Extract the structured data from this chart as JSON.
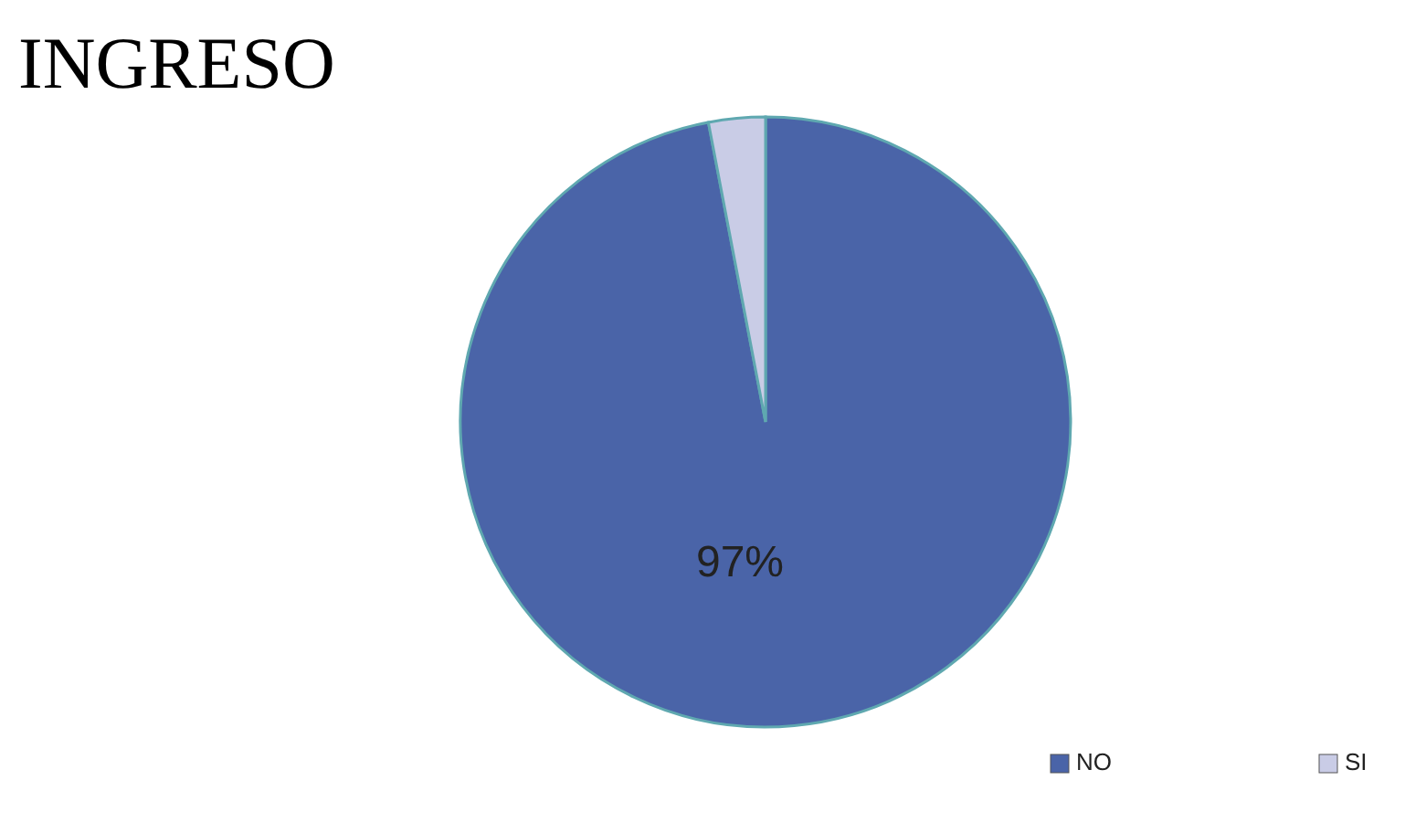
{
  "chart_data": {
    "type": "pie",
    "title": "INGRESO",
    "categories": [
      "NO",
      "SI"
    ],
    "values": [
      97,
      3
    ],
    "colors": [
      "#4a64a8",
      "#c9cce6"
    ],
    "value_labels": [
      "97%",
      null
    ],
    "legend": "bottom right"
  }
}
